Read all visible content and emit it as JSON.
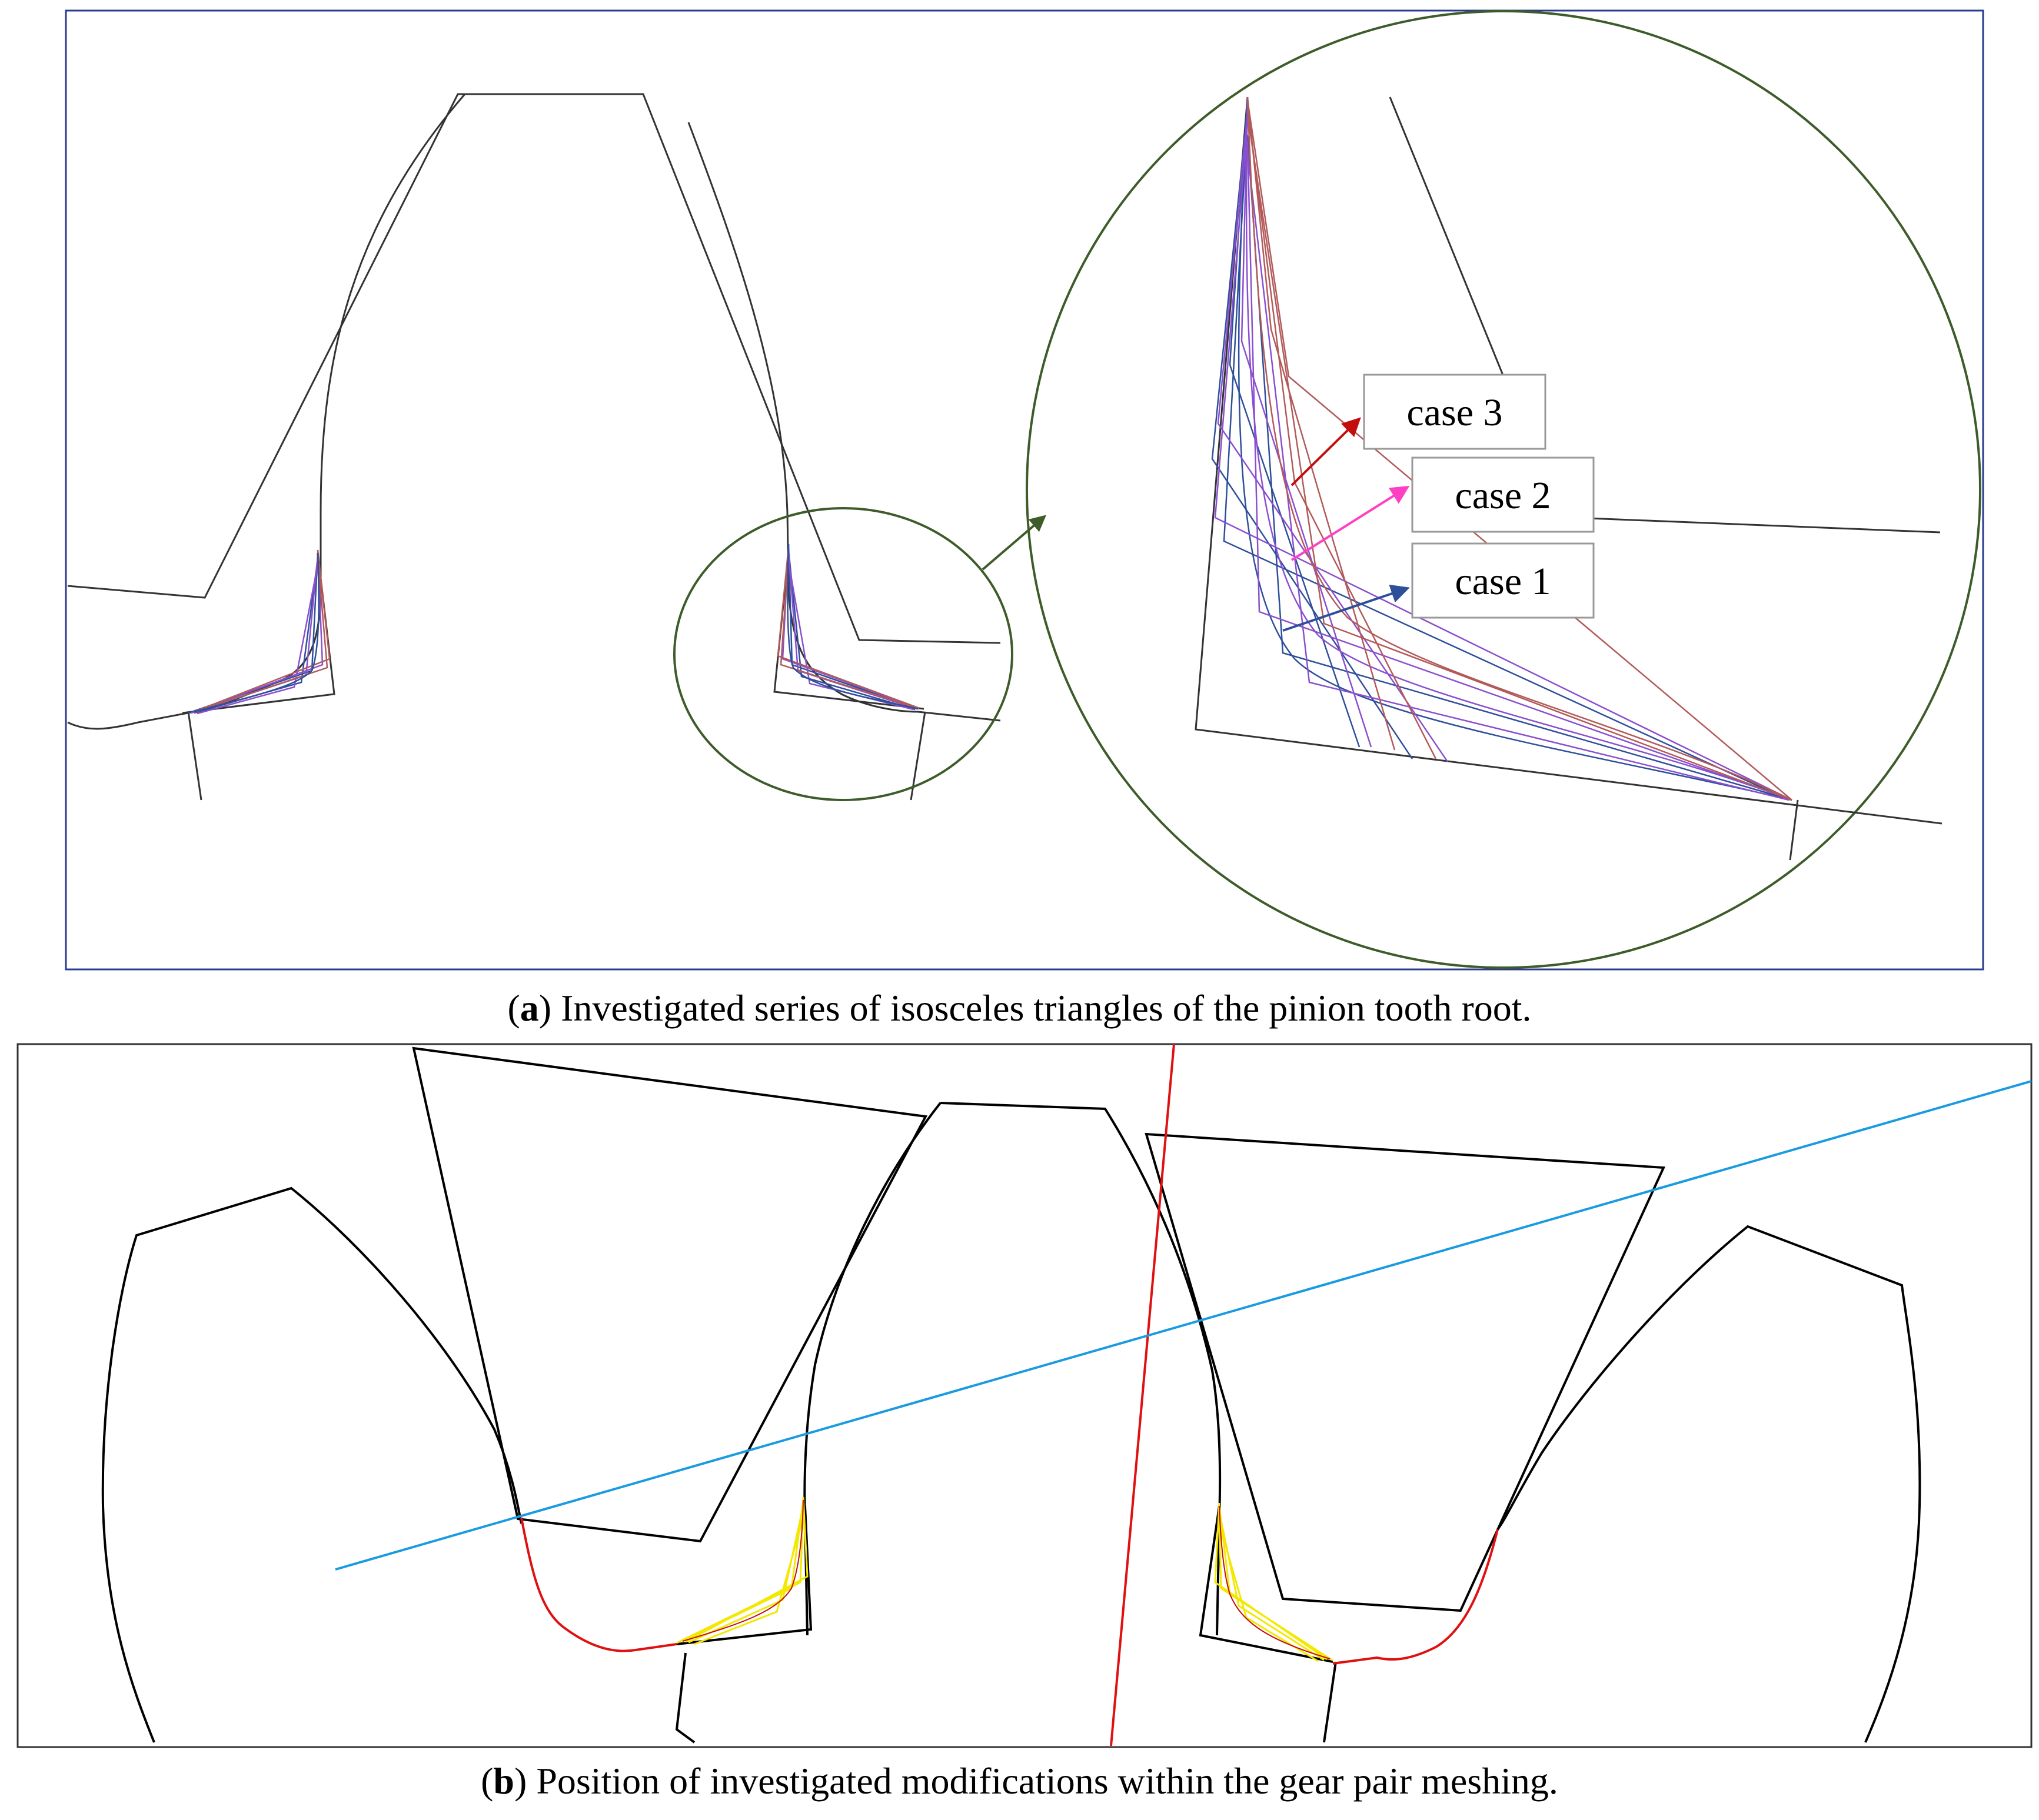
{
  "panel_a": {
    "caption_letter": "a",
    "caption_text": " Investigated series of isosceles triangles of the pinion tooth root.",
    "labels": [
      "case 3",
      "case 2",
      "case 1"
    ]
  },
  "panel_b": {
    "caption_letter": "b",
    "caption_text": " Position of investigated modifications within the gear pair meshing."
  },
  "colors": {
    "frame": "#2b3c8f",
    "outline": "#333333",
    "zoom_circle": "#3d5c2a",
    "case1": "#2e4f9a",
    "case2": "#ff3fc4",
    "case3": "#c40d0d",
    "purple": "#8a4fcf",
    "brown": "#b25a5a",
    "red": "#e01010",
    "blue_line": "#1a9be0",
    "yellow": "#f2e800"
  }
}
